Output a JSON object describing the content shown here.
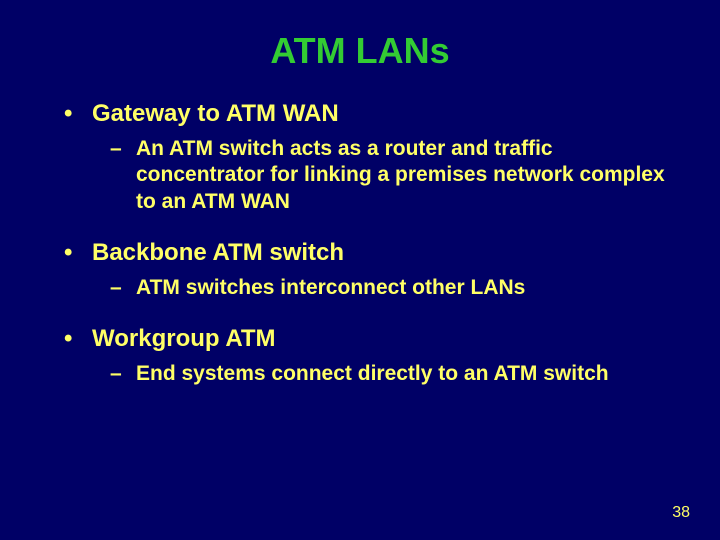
{
  "background_color": "#000066",
  "title_color": "#33cc33",
  "text_color": "#ffff66",
  "title": "ATM LANs",
  "title_fontsize": 36,
  "level1_fontsize": 24,
  "level2_fontsize": 21,
  "bullets": [
    {
      "text": "Gateway to ATM WAN",
      "sub": [
        "An ATM switch acts as a router and traffic concentrator for linking a premises network complex to an ATM WAN"
      ]
    },
    {
      "text": "Backbone ATM switch",
      "sub": [
        "ATM switches interconnect other LANs"
      ]
    },
    {
      "text": "Workgroup ATM",
      "sub": [
        "End systems connect directly to an ATM switch"
      ]
    }
  ],
  "page_number": "38"
}
